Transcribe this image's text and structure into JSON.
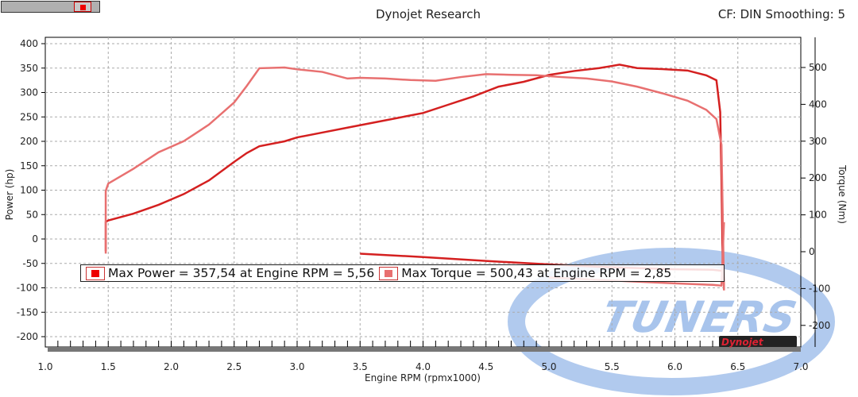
{
  "header": {
    "title": "Dynojet Research",
    "settings": "CF: DIN Smoothing: 5"
  },
  "watermark": {
    "logo_text": "TUNERS",
    "brand": "Dynojet"
  },
  "chart_data": {
    "type": "line",
    "title": "Dynojet Research",
    "xlabel": "Engine RPM (rpmx1000)",
    "ylabel": "Power (hp)",
    "y2label": "Torque (Nm)",
    "xlim": [
      1.0,
      7.0
    ],
    "ylim": [
      -230,
      410
    ],
    "y2lim": [
      -255,
      580
    ],
    "xticks": [
      "1.0",
      "1.5",
      "2.0",
      "2.5",
      "3.0",
      "3.5",
      "4.0",
      "4.5",
      "5.0",
      "5.5",
      "6.0",
      "6.5",
      "7.0"
    ],
    "yticks": [
      "400",
      "350",
      "300",
      "250",
      "200",
      "150",
      "100",
      "50",
      "0",
      "-50",
      "-100",
      "-150",
      "-200"
    ],
    "y2ticks": [
      "500",
      "400",
      "300",
      "200",
      "100",
      "0",
      "-100",
      "-200"
    ],
    "grid": true,
    "colors": {
      "power": "#d42020",
      "torque": "#e87070",
      "watermark": "#a8c4ec"
    },
    "legend": {
      "power": "Max Power = 357,54 at Engine RPM = 5,56",
      "torque": "Max Torque = 500,43 at Engine RPM = 2,85"
    },
    "series": [
      {
        "name": "Power",
        "axis": "left",
        "x": [
          1.48,
          1.48,
          1.5,
          1.7,
          1.9,
          2.1,
          2.3,
          2.5,
          2.6,
          2.7,
          2.9,
          3.0,
          3.2,
          3.4,
          3.6,
          3.8,
          4.0,
          4.2,
          4.4,
          4.6,
          4.8,
          5.0,
          5.2,
          5.4,
          5.56,
          5.7,
          5.9,
          6.1,
          6.25,
          6.33,
          6.36,
          6.37,
          6.38,
          6.39
        ],
        "y": [
          -25,
          35,
          38,
          52,
          70,
          92,
          120,
          158,
          176,
          190,
          200,
          208,
          218,
          228,
          238,
          248,
          258,
          275,
          292,
          312,
          322,
          336,
          344,
          350,
          357,
          350,
          348,
          345,
          335,
          325,
          260,
          120,
          -50,
          -100
        ]
      },
      {
        "name": "Power coast",
        "axis": "left",
        "x": [
          3.5,
          4.0,
          4.5,
          5.0,
          5.5,
          6.0,
          6.3,
          6.37
        ],
        "y": [
          -30,
          -37,
          -45,
          -52,
          -58,
          -62,
          -63,
          -65
        ]
      },
      {
        "name": "Torque",
        "axis": "right",
        "x": [
          1.48,
          1.48,
          1.5,
          1.7,
          1.9,
          2.1,
          2.3,
          2.5,
          2.6,
          2.7,
          2.9,
          3.0,
          3.2,
          3.4,
          3.5,
          3.7,
          3.9,
          4.1,
          4.3,
          4.5,
          4.7,
          4.9,
          5.1,
          5.3,
          5.5,
          5.7,
          5.9,
          6.1,
          6.25,
          6.33,
          6.37,
          6.38,
          6.39
        ],
        "y": [
          -5,
          165,
          185,
          225,
          270,
          300,
          345,
          405,
          450,
          498,
          500,
          495,
          488,
          470,
          472,
          470,
          466,
          464,
          474,
          482,
          480,
          479,
          474,
          470,
          462,
          448,
          430,
          410,
          385,
          360,
          290,
          100,
          -105
        ]
      },
      {
        "name": "Torque coast",
        "axis": "right",
        "x": [
          5.0,
          5.5,
          6.0,
          6.3,
          6.37,
          6.39
        ],
        "y": [
          -70,
          -78,
          -86,
          -90,
          -92,
          80
        ]
      }
    ]
  }
}
